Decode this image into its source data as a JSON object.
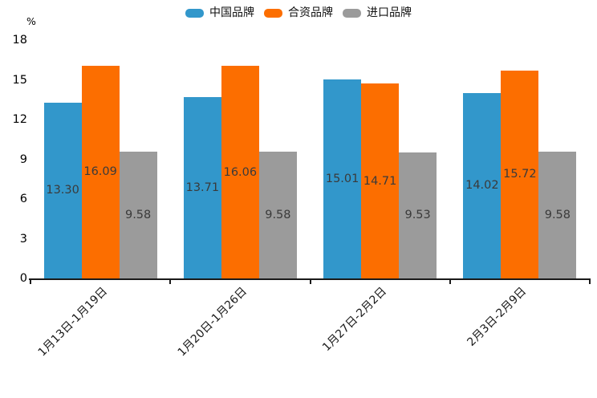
{
  "chart_data": {
    "type": "bar",
    "title": "",
    "categories": [
      "1月13日-1月19日",
      "1月20日-1月26日",
      "1月27日-2月2日",
      "2月3日-2月9日"
    ],
    "series": [
      {
        "name": "中国品牌",
        "color": "#3297CB",
        "values": [
          13.3,
          13.71,
          15.01,
          14.02
        ]
      },
      {
        "name": "合资品牌",
        "color": "#FC6E00",
        "values": [
          16.09,
          16.06,
          14.71,
          15.72
        ]
      },
      {
        "name": "进口品牌",
        "color": "#9B9B9B",
        "values": [
          9.58,
          9.58,
          9.53,
          9.58
        ]
      }
    ],
    "xlabel": "",
    "ylabel": "%",
    "ylim": [
      0,
      18
    ],
    "yticks": [
      0,
      3,
      6,
      9,
      12,
      15,
      18
    ],
    "value_labels": true,
    "value_label_decimals": 2,
    "legend_position": "top",
    "grid": false
  }
}
